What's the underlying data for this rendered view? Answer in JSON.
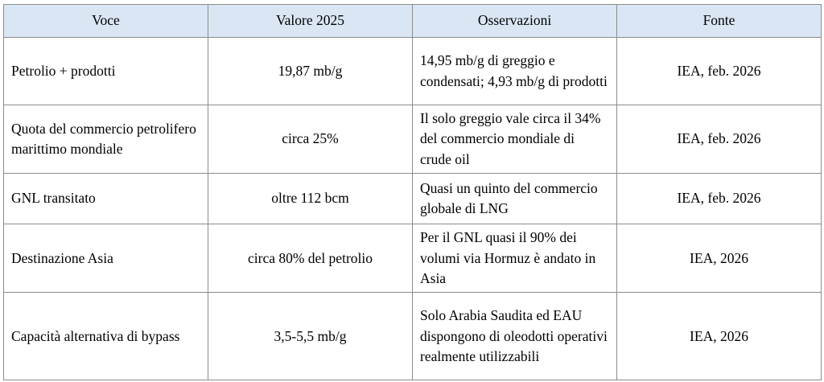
{
  "colors": {
    "header_bg": "#dae6f3",
    "border": "#8c8c8c",
    "text": "#000000",
    "page_bg": "#ffffff"
  },
  "table": {
    "columns": [
      {
        "label": "Voce"
      },
      {
        "label": "Valore 2025"
      },
      {
        "label": "Osservazioni"
      },
      {
        "label": "Fonte"
      }
    ],
    "rows": [
      {
        "voce": "Petrolio + prodotti",
        "valore": "19,87 mb/g",
        "osservazioni": "14,95 mb/g di greggio e condensati; 4,93 mb/g di prodotti",
        "fonte": "IEA, feb. 2026"
      },
      {
        "voce": "Quota del commercio petrolifero marittimo mondiale",
        "valore": "circa 25%",
        "osservazioni": "Il solo greggio vale circa il 34% del commercio mondiale di crude oil",
        "fonte": "IEA, feb. 2026"
      },
      {
        "voce": "GNL transitato",
        "valore": "oltre 112 bcm",
        "osservazioni": "Quasi un quinto del commercio globale di LNG",
        "fonte": "IEA, feb. 2026"
      },
      {
        "voce": "Destinazione Asia",
        "valore": "circa 80% del petrolio",
        "osservazioni": "Per il GNL quasi il 90% dei volumi via Hormuz è andato in Asia",
        "fonte": "IEA, 2026"
      },
      {
        "voce": "Capacità alternativa di bypass",
        "valore": "3,5-5,5 mb/g",
        "osservazioni": "Solo Arabia Saudita ed EAU dispongono di oleodotti operativi realmente utilizzabili",
        "fonte": "IEA, 2026"
      }
    ]
  }
}
